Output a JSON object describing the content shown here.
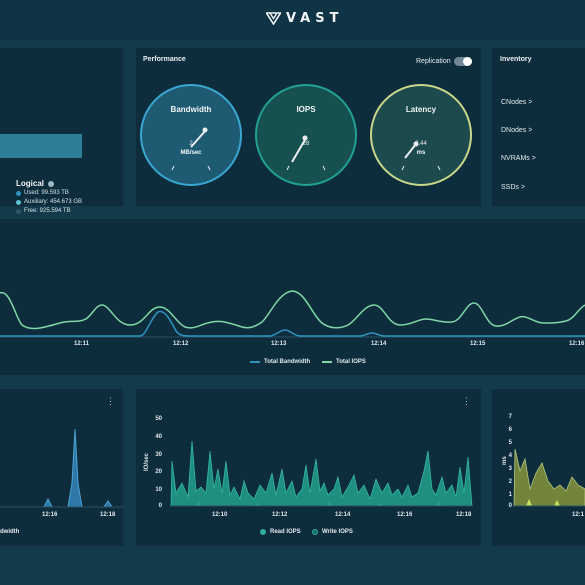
{
  "brand": {
    "name": "VAST"
  },
  "colors": {
    "background": "#123a4a",
    "panel": "#0d2c3c",
    "bandwidth": "#2e94bf",
    "iops": "#1e8f86",
    "latency": "#c8d68a",
    "total_iops_line": "#7fd8a8",
    "read_iops": "#2fae9a",
    "write_iops": "#c7e35d"
  },
  "capacity": {
    "title": "Logical",
    "info_icon": "info-icon",
    "used": "Used: 99.593 TB",
    "auxiliary": "Auxiliary: 454.673 GB",
    "free": "Free: 925.594 TB"
  },
  "performance": {
    "title": "Performance",
    "replication_label": "Replication",
    "replication_on": false,
    "gauges": [
      {
        "label": "Bandwidth",
        "value": "2",
        "unit": "MB/sec"
      },
      {
        "label": "IOPS",
        "value": "28",
        "unit": ""
      },
      {
        "label": "Latency",
        "value": "2.44",
        "unit": "ms"
      }
    ]
  },
  "inventory": {
    "title": "Inventory",
    "items": [
      "CNodes >",
      "DNodes >",
      "NVRAMs >",
      "SSDs >"
    ]
  },
  "main_chart": {
    "x_ticks": [
      "12:11",
      "12:12",
      "12:13",
      "12:14",
      "12:15",
      "12:16"
    ],
    "legend": [
      "Total Bandwidth",
      "Total IOPS"
    ]
  },
  "bandwidth_chart": {
    "x_ticks": [
      "12:16",
      "12:18"
    ],
    "legend_fragment": "dwidth"
  },
  "iops_chart": {
    "y_label": "IO/sec",
    "y_ticks": [
      "50",
      "40",
      "30",
      "20",
      "10",
      "0"
    ],
    "x_ticks": [
      "12:10",
      "12:12",
      "12:14",
      "12:16",
      "12:18"
    ],
    "legend": [
      "Read IOPS",
      "Write IOPS"
    ]
  },
  "latency_chart": {
    "y_label": "ms",
    "y_ticks": [
      "7",
      "6",
      "5",
      "4",
      "3",
      "2",
      "1",
      "0"
    ],
    "x_tick": "12:1"
  }
}
